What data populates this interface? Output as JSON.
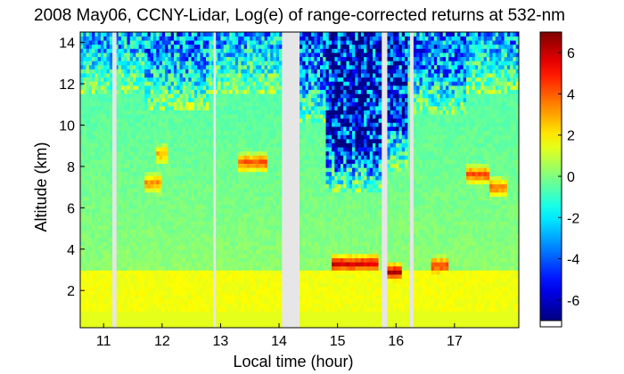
{
  "chart_data": {
    "type": "heatmap",
    "title": "2008 May06, CCNY-Lidar, Log(e) of range-corrected returns at 532-nm",
    "xlabel": "Local time (hour)",
    "ylabel": "Altitude (km)",
    "xlim": [
      10.6,
      18.1
    ],
    "ylim": [
      0.2,
      14.5
    ],
    "xticks": [
      11,
      12,
      13,
      14,
      15,
      16,
      17
    ],
    "yticks": [
      2,
      4,
      6,
      8,
      10,
      12,
      14
    ],
    "colorbar": {
      "colormap": "jet",
      "range": [
        -7,
        7
      ],
      "ticks": [
        -6,
        -4,
        -2,
        0,
        2,
        4,
        6
      ]
    },
    "data_gaps_hours": [
      [
        11.15,
        11.22
      ],
      [
        12.88,
        12.92
      ],
      [
        14.05,
        14.33
      ],
      [
        15.77,
        15.85
      ],
      [
        16.24,
        16.28
      ]
    ],
    "boundary_layer_top_km": 3.0,
    "cloud_layers": [
      {
        "t_start": 11.7,
        "t_end": 12.0,
        "alt_km": 7.2,
        "max_value": 3.5
      },
      {
        "t_start": 11.9,
        "t_end": 12.1,
        "alt_km": 8.6,
        "max_value": 3.0
      },
      {
        "t_start": 13.3,
        "t_end": 13.8,
        "alt_km": 8.2,
        "max_value": 4.5
      },
      {
        "t_start": 14.9,
        "t_end": 15.7,
        "alt_km": 3.3,
        "max_value": 6.0
      },
      {
        "t_start": 15.85,
        "t_end": 16.1,
        "alt_km": 2.9,
        "max_value": 6.5
      },
      {
        "t_start": 16.6,
        "t_end": 16.9,
        "alt_km": 3.2,
        "max_value": 5.0
      },
      {
        "t_start": 17.2,
        "t_end": 17.6,
        "alt_km": 7.6,
        "max_value": 4.5
      },
      {
        "t_start": 17.6,
        "t_end": 17.9,
        "alt_km": 7.0,
        "max_value": 4.0
      }
    ]
  }
}
